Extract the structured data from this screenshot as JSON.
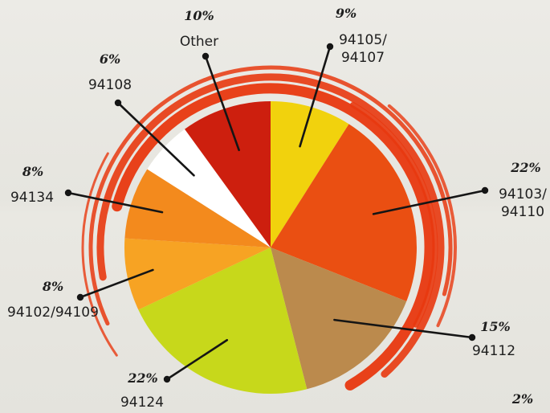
{
  "chart_data": {
    "type": "pie",
    "title": "",
    "slices": [
      {
        "label": "94105/\n94107",
        "value": 9,
        "pct_text": "9%",
        "color": "#f1d20d"
      },
      {
        "label": "94103/\n94110",
        "value": 22,
        "pct_text": "22%",
        "color": "#ea4f12"
      },
      {
        "label": "94112",
        "value": 15,
        "pct_text": "15%",
        "color": "#bb8a4d"
      },
      {
        "label": "94124",
        "value": 22,
        "pct_text": "22%",
        "color": "#c7d81b"
      },
      {
        "label": "94102/94109",
        "value": 8,
        "pct_text": "8%",
        "color": "#f7a323"
      },
      {
        "label": "94134",
        "value": 8,
        "pct_text": "8%",
        "color": "#f38a1d"
      },
      {
        "label": "94108",
        "value": 6,
        "pct_text": "6%",
        "color": "#ffffff"
      },
      {
        "label": "Other",
        "value": 10,
        "pct_text": "10%",
        "color": "#cd1f0e"
      }
    ],
    "extra_annotation": "2%",
    "brush_color": "#e8380f"
  }
}
